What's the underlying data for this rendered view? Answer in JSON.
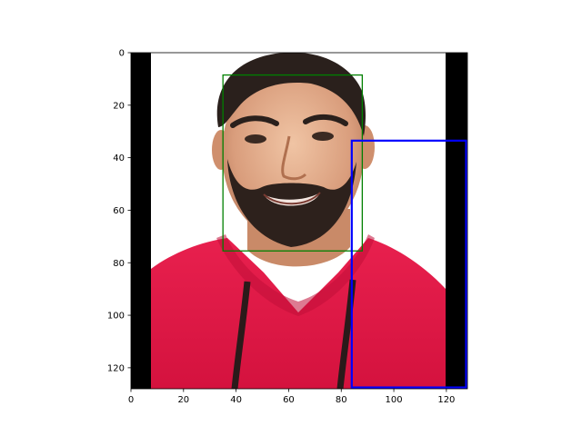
{
  "chart_data": {
    "type": "image",
    "title": "",
    "xlabel": "",
    "ylabel": "",
    "xlim": [
      0,
      128
    ],
    "ylim": [
      128,
      0
    ],
    "y_inverted": true,
    "grid": false,
    "image_content": "portrait of a smiling bearded man in a red hoodie",
    "x_ticks": [
      0,
      20,
      40,
      60,
      80,
      100,
      120
    ],
    "y_ticks": [
      0,
      20,
      40,
      60,
      80,
      100,
      120
    ],
    "boxes": [
      {
        "color": "#008000",
        "x0": 35,
        "y0": 8.5,
        "x1": 88,
        "y1": 75.5
      },
      {
        "color": "#0000ff",
        "x0": 84,
        "y0": 33.5,
        "x1": 127.5,
        "y1": 127.5
      }
    ]
  }
}
